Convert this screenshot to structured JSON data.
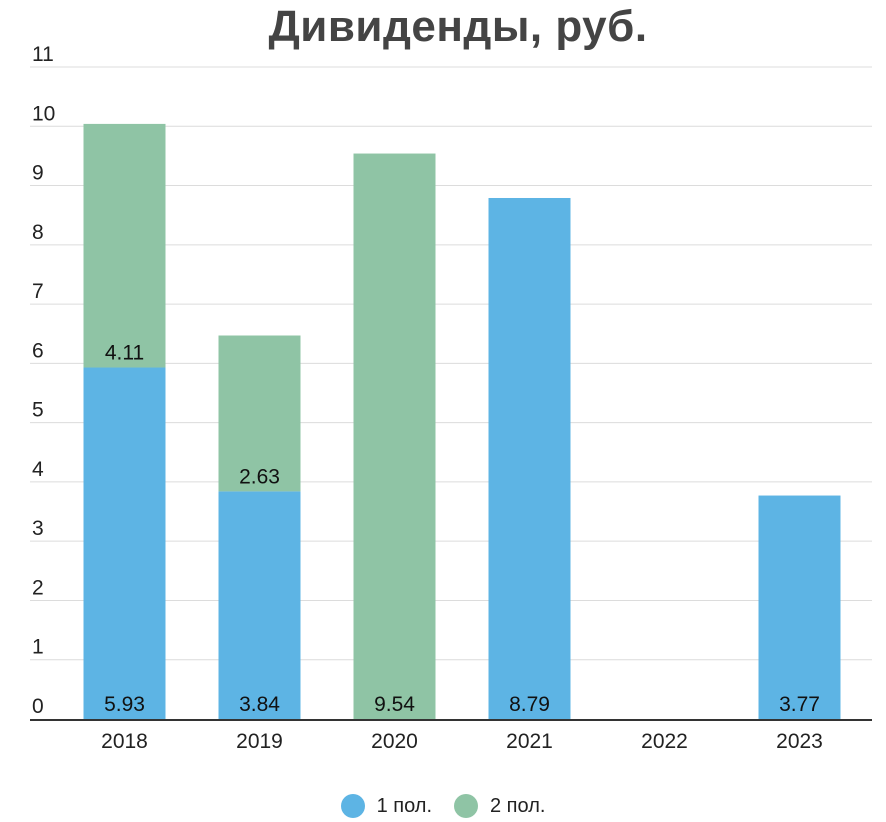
{
  "chart_data": {
    "type": "bar",
    "stacked": true,
    "title": "Дивиденды, руб.",
    "categories": [
      "2018",
      "2019",
      "2020",
      "2021",
      "2022",
      "2023"
    ],
    "series": [
      {
        "name": "1 пол.",
        "color": "#5db4e4",
        "values": [
          5.93,
          3.84,
          0,
          8.79,
          0,
          3.77
        ]
      },
      {
        "name": "2 пол.",
        "color": "#8fc4a5",
        "values": [
          4.11,
          2.63,
          9.54,
          0,
          0,
          0
        ]
      }
    ],
    "data_labels": [
      {
        "category": "2018",
        "series": "1 пол.",
        "text": "5.93"
      },
      {
        "category": "2018",
        "series": "2 пол.",
        "text": "4.11"
      },
      {
        "category": "2019",
        "series": "1 пол.",
        "text": "3.84"
      },
      {
        "category": "2019",
        "series": "2 пол.",
        "text": "2.63"
      },
      {
        "category": "2020",
        "series": "2 пол.",
        "text": "9.54"
      },
      {
        "category": "2021",
        "series": "1 пол.",
        "text": "8.79"
      },
      {
        "category": "2023",
        "series": "1 пол.",
        "text": "3.77"
      }
    ],
    "yticks": [
      "0",
      "1",
      "2",
      "3",
      "4",
      "5",
      "6",
      "7",
      "8",
      "9",
      "10",
      "11"
    ],
    "ylim": [
      0,
      11
    ],
    "grid": true,
    "legend_position": "bottom"
  }
}
